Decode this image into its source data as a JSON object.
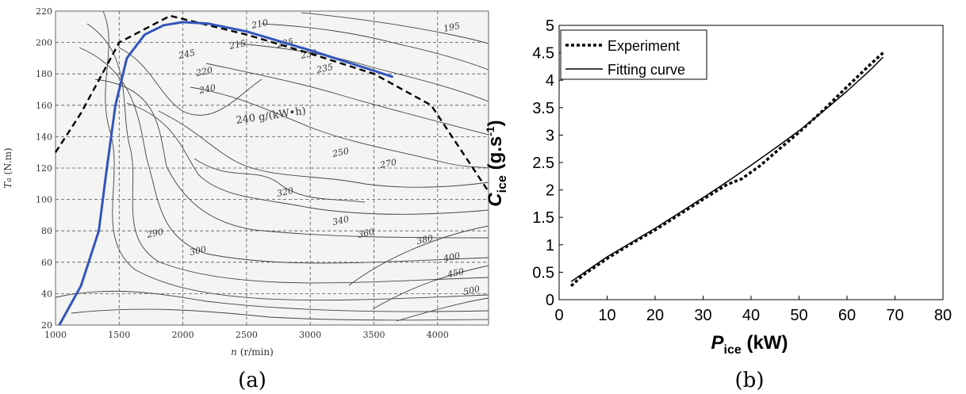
{
  "panel_a": {
    "caption": "(a)",
    "xlabel_var": "n",
    "xlabel_unit": " (r/min)",
    "ylabel_var": "T",
    "ylabel_sub": "a",
    "ylabel_unit": " (N.m)",
    "center_label": "240 g/(kW•h)",
    "contour_labels": [
      "195",
      "210",
      "215",
      "220",
      "225",
      "230",
      "235",
      "240",
      "245",
      "250",
      "270",
      "290",
      "300",
      "320",
      "340",
      "360",
      "380",
      "400",
      "450",
      "500"
    ]
  },
  "panel_b": {
    "caption": "(b)",
    "xlabel_main": "P",
    "xlabel_sub": "ice",
    "xlabel_unit": " (kW)",
    "ylabel_main": "C",
    "ylabel_sub": "ice",
    "ylabel_unit": " (g.s",
    "ylabel_sup": "-1",
    "ylabel_close": ")"
  },
  "chart_data": [
    {
      "type": "line",
      "panel": "a",
      "xlabel": "n (r/min)",
      "ylabel": "Ta (N.m)",
      "xlim": [
        1000,
        4400
      ],
      "ylim": [
        20,
        220
      ],
      "xticks": [
        1000,
        1500,
        2000,
        2500,
        3000,
        3500,
        4000
      ],
      "yticks": [
        20,
        40,
        60,
        80,
        100,
        120,
        140,
        160,
        180,
        200,
        220
      ],
      "grid": true,
      "series": [
        {
          "color": "#000000",
          "style": "dashed",
          "x": [
            1000,
            1200,
            1500,
            1900,
            2500,
            3000,
            3500,
            3950,
            4400
          ],
          "y": [
            130,
            155,
            200,
            217,
            205,
            193,
            180,
            160,
            105
          ]
        },
        {
          "color": "#3355bb",
          "style": "solid",
          "x": [
            1030,
            1200,
            1340,
            1400,
            1470,
            1560,
            1700,
            1850,
            2000,
            2200,
            2500,
            3000,
            3500,
            3650
          ],
          "y": [
            20,
            45,
            80,
            118,
            160,
            190,
            205,
            211,
            213,
            212,
            207,
            195,
            182,
            178
          ]
        }
      ]
    },
    {
      "type": "line",
      "panel": "b",
      "xlabel": "P ice (kW)",
      "ylabel": "C ice (g.s-1)",
      "xlim": [
        0,
        80
      ],
      "ylim": [
        0,
        5
      ],
      "xticks": [
        0,
        10,
        20,
        30,
        40,
        50,
        60,
        70,
        80
      ],
      "yticks": [
        0,
        0.5,
        1,
        1.5,
        2,
        2.5,
        3,
        3.5,
        4,
        4.5,
        5
      ],
      "legend": "top-left",
      "series": [
        {
          "name": "Experiment",
          "style": "dotted",
          "x": [
            2.5,
            5,
            10,
            15,
            20,
            25,
            30,
            35,
            38,
            42,
            45,
            50,
            55,
            60,
            65,
            67.5
          ],
          "y": [
            0.25,
            0.45,
            0.75,
            1.02,
            1.27,
            1.55,
            1.83,
            2.1,
            2.2,
            2.45,
            2.68,
            3.05,
            3.45,
            3.88,
            4.3,
            4.5
          ]
        },
        {
          "name": "Fitting curve",
          "style": "solid",
          "x": [
            2.5,
            5,
            10,
            15,
            20,
            25,
            30,
            35,
            40,
            45,
            50,
            55,
            60,
            65,
            67.5
          ],
          "y": [
            0.33,
            0.48,
            0.78,
            1.04,
            1.3,
            1.58,
            1.86,
            2.15,
            2.45,
            2.76,
            3.08,
            3.43,
            3.8,
            4.2,
            4.42
          ]
        }
      ]
    }
  ]
}
